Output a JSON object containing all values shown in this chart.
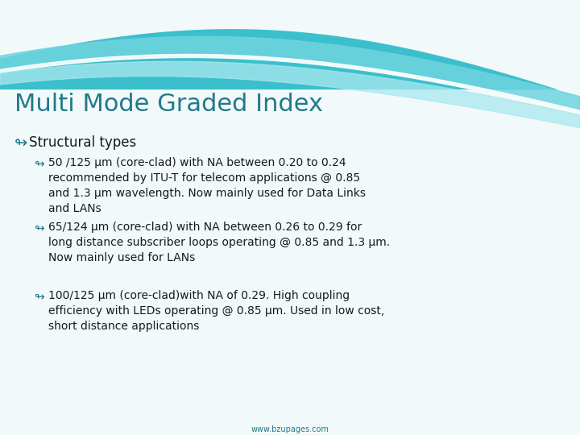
{
  "title": "Multi Mode Graded Index",
  "title_color": "#217A8A",
  "title_fontsize": 22,
  "background_color": "#f2f9fa",
  "bullet1": "Structural types",
  "bullet1_fontsize": 12,
  "bullet1_color": "#1a1a1a",
  "sub_bullets": [
    "50 /125 μm (core-clad) with NA between 0.20 to 0.24\nrecommended by ITU-T for telecom applications @ 0.85\nand 1.3 μm wavelength. Now mainly used for Data Links\nand LANs",
    "65/124 μm (core-clad) with NA between 0.26 to 0.29 for\nlong distance subscriber loops operating @ 0.85 and 1.3 μm.\nNow mainly used for LANs",
    "100/125 μm (core-clad)with NA of 0.29. High coupling\nefficiency with LEDs operating @ 0.85 μm. Used in low cost,\nshort distance applications"
  ],
  "sub_bullet_fontsize": 10,
  "sub_bullet_color": "#1a1a1a",
  "footer": "www.bzupages.com",
  "footer_color": "#217A8A",
  "footer_fontsize": 7,
  "wave_dark": "#3BBFCC",
  "wave_mid": "#6ED4DE",
  "wave_light": "#A8E8EE",
  "wave_white": "#FFFFFF",
  "bullet_symbol_color": "#217A8A"
}
